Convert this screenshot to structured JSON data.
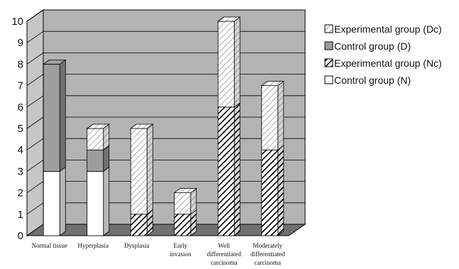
{
  "chart_data": {
    "type": "bar",
    "stacked": true,
    "three_d": true,
    "categories": [
      [
        "Normal tissue"
      ],
      [
        "Hyperplasia"
      ],
      [
        "Dysplasia"
      ],
      [
        "Early",
        "invasion"
      ],
      [
        "Well",
        "differentiated",
        "carcinoma"
      ],
      [
        "Moderately",
        "differentiated",
        "carcinoma"
      ]
    ],
    "series": [
      {
        "name": "Control group (N)",
        "values": [
          3,
          3,
          0,
          0,
          0,
          0
        ],
        "color": "#ffffff",
        "pattern": "none"
      },
      {
        "name": "Experimental group (Nc)",
        "values": [
          0,
          0,
          1,
          1,
          6,
          4
        ],
        "color": "#ffffff",
        "pattern": "dense-hatch"
      },
      {
        "name": "Control group (D)",
        "values": [
          5,
          1,
          0,
          0,
          0,
          0
        ],
        "color": "#9e9e9e",
        "pattern": "none"
      },
      {
        "name": "Experimental group (Dc)",
        "values": [
          0,
          1,
          4,
          1,
          4,
          3
        ],
        "color": "#ffffff",
        "pattern": "light-hatch"
      }
    ],
    "legend_order": [
      3,
      2,
      1,
      0
    ],
    "ylim": [
      0,
      10
    ],
    "yticks": [
      0,
      1,
      2,
      3,
      4,
      5,
      6,
      7,
      8,
      9,
      10
    ],
    "grid": true,
    "legend_position": "right",
    "wall_color": "#b3b3b3",
    "floor_color": "#707070"
  }
}
